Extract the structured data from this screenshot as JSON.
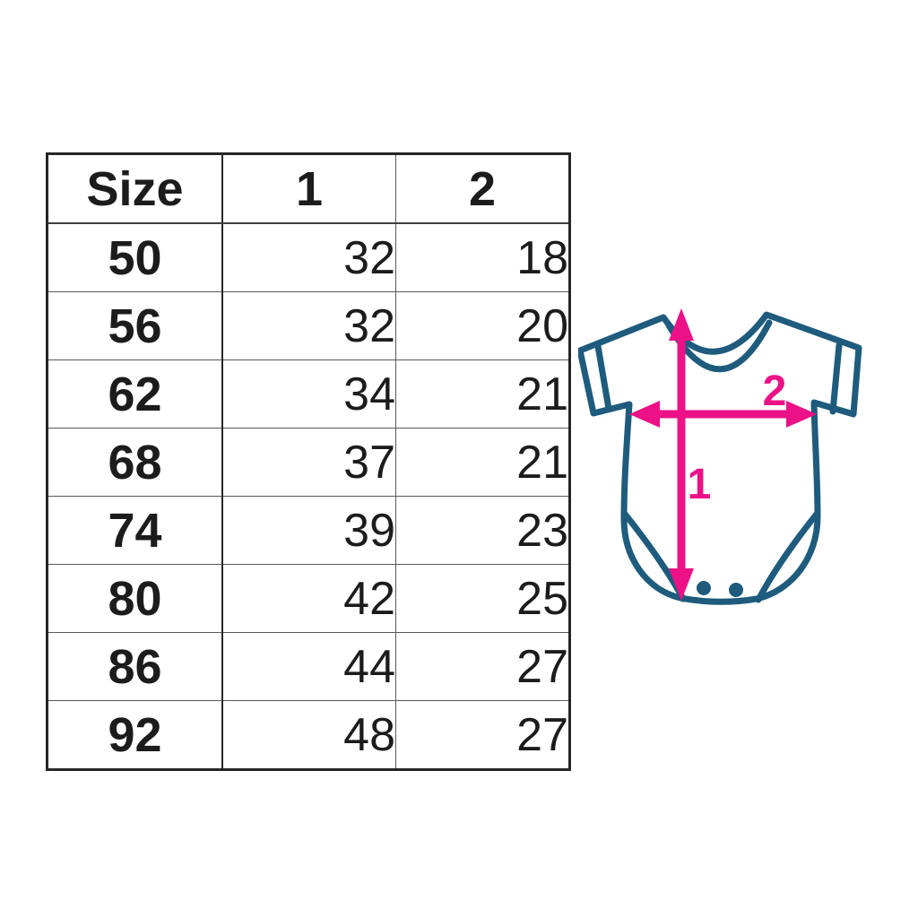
{
  "page": {
    "background": "#ffffff"
  },
  "size_chart": {
    "headers": [
      "Size",
      "1",
      "2"
    ],
    "rows": [
      [
        "50",
        "32",
        "18"
      ],
      [
        "56",
        "32",
        "20"
      ],
      [
        "62",
        "34",
        "21"
      ],
      [
        "68",
        "37",
        "21"
      ],
      [
        "74",
        "39",
        "23"
      ],
      [
        "80",
        "42",
        "25"
      ],
      [
        "86",
        "44",
        "27"
      ],
      [
        "92",
        "48",
        "27"
      ]
    ]
  },
  "diagram": {
    "label_length": "1",
    "label_width": "2",
    "outline_color": "#1e5b7d",
    "arrow_color": "#ec1187"
  },
  "chart_data": {
    "type": "table",
    "columns": [
      "Size",
      "1",
      "2"
    ],
    "rows": [
      [
        50,
        32,
        18
      ],
      [
        56,
        32,
        20
      ],
      [
        62,
        34,
        21
      ],
      [
        68,
        37,
        21
      ],
      [
        74,
        39,
        23
      ],
      [
        80,
        42,
        25
      ],
      [
        86,
        44,
        27
      ],
      [
        92,
        48,
        27
      ]
    ],
    "annotations": [
      "1 = vertical measurement arrow on bodysuit (length, neck to crotch)",
      "2 = horizontal measurement arrow on bodysuit (width, armpit to armpit)"
    ]
  }
}
